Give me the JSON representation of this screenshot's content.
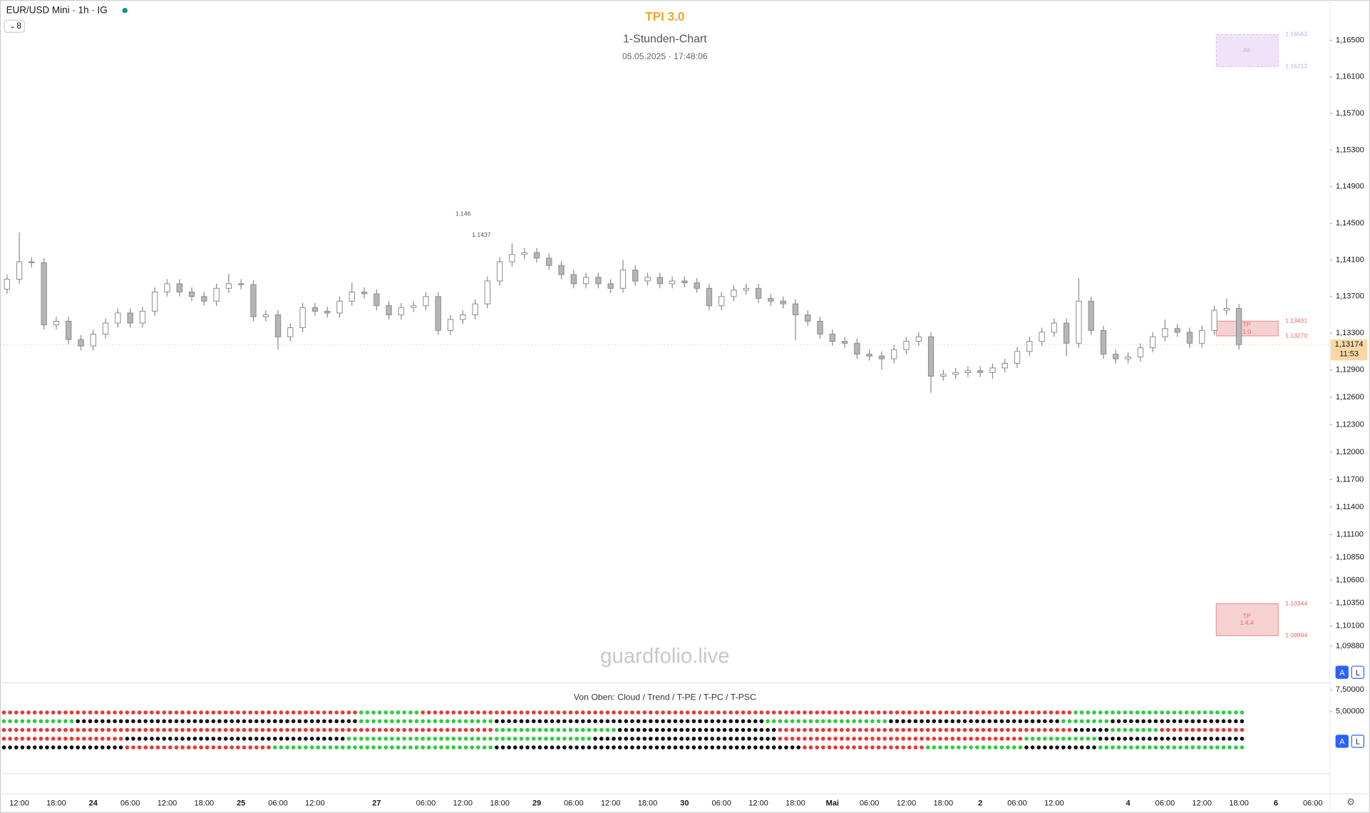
{
  "header": {
    "symbol": "EUR/USD Mini · 1h · IG",
    "indicator_count": 8
  },
  "chart_data": {
    "type": "candlestick",
    "title": "TPI 3.0",
    "subtitle": "1-Stunden-Chart",
    "timestamp": "05.05.2025 · 17:48:06",
    "watermark": "guardfolio.live",
    "categories": [
      null,
      "12:00",
      null,
      null,
      "18:00",
      null,
      null,
      "24",
      null,
      null,
      "06:00",
      null,
      null,
      "12:00",
      null,
      null,
      "18:00",
      null,
      null,
      "25",
      null,
      null,
      "06:00",
      null,
      null,
      "12:00",
      null,
      null,
      null,
      null,
      "27",
      null,
      null,
      null,
      "06:00",
      null,
      null,
      "12:00",
      null,
      null,
      "18:00",
      null,
      null,
      "29",
      null,
      null,
      "06:00",
      null,
      null,
      "12:00",
      null,
      null,
      "18:00",
      null,
      null,
      "30",
      null,
      null,
      "06:00",
      null,
      null,
      "12:00",
      null,
      null,
      "18:00",
      null,
      null,
      "Mai",
      null,
      null,
      "06:00",
      null,
      null,
      "12:00",
      null,
      null,
      "18:00",
      null,
      null,
      "2",
      null,
      null,
      "06:00",
      null,
      null,
      "12:00",
      null,
      null,
      null,
      null,
      null,
      "4",
      null,
      null,
      "06:00",
      null,
      null,
      "12:00",
      null,
      null,
      "18:00",
      null,
      null,
      "6",
      null,
      null,
      "06:00",
      null
    ],
    "open": [
      1.1378,
      1.1389,
      1.1408,
      1.1407,
      1.1339,
      1.1343,
      1.1323,
      1.1316,
      1.1329,
      1.1341,
      1.1352,
      1.1341,
      1.1354,
      1.1375,
      1.1384,
      1.1375,
      1.137,
      1.1365,
      1.1379,
      1.1384,
      1.1383,
      1.1348,
      1.135,
      1.1326,
      1.1336,
      1.1358,
      1.1354,
      1.1352,
      1.1365,
      1.1375,
      1.1373,
      1.136,
      1.135,
      1.1358,
      1.136,
      1.137,
      1.1333,
      1.1345,
      1.135,
      1.1362,
      1.1387,
      1.1408,
      1.1416,
      1.1418,
      1.1412,
      1.1404,
      1.1394,
      1.1384,
      1.1391,
      1.1384,
      1.1379,
      1.1399,
      1.1387,
      1.1391,
      1.1384,
      1.1387,
      1.1385,
      1.1379,
      1.136,
      1.137,
      1.1377,
      1.1379,
      1.1368,
      1.1365,
      1.1362,
      1.135,
      1.1343,
      1.1329,
      1.1321,
      1.1319,
      1.1307,
      1.1305,
      1.1302,
      1.1312,
      1.1321,
      1.1326,
      1.1283,
      1.1285,
      1.1287,
      1.1289,
      1.1287,
      1.1292,
      1.1297,
      1.131,
      1.1321,
      1.1331,
      1.1341,
      1.1319,
      1.1365,
      1.1333,
      1.1307,
      1.1302,
      1.1304,
      1.1314,
      1.1326,
      1.1335,
      1.1331,
      1.1319,
      1.1333,
      1.1355,
      1.1357,
      null,
      null,
      null,
      null,
      null,
      null,
      null
    ],
    "high": [
      1.1394,
      1.144,
      1.1413,
      1.1412,
      1.1348,
      1.1348,
      1.1328,
      1.1334,
      1.1346,
      1.1357,
      1.1357,
      1.1359,
      1.138,
      1.1389,
      1.1389,
      1.138,
      1.1375,
      1.1384,
      1.1395,
      1.1389,
      1.1388,
      1.1355,
      1.1355,
      1.1341,
      1.1363,
      1.1363,
      1.1359,
      1.137,
      1.1385,
      1.138,
      1.1378,
      1.1365,
      1.1363,
      1.1365,
      1.1375,
      1.1375,
      1.135,
      1.1355,
      1.1367,
      1.1392,
      1.1413,
      1.1428,
      1.1423,
      1.1423,
      1.1417,
      1.1409,
      1.1399,
      1.1396,
      1.1396,
      1.1389,
      1.141,
      1.1404,
      1.1396,
      1.1396,
      1.1392,
      1.1392,
      1.139,
      1.1384,
      1.1375,
      1.1382,
      1.1384,
      1.1384,
      1.1373,
      1.137,
      1.1367,
      1.1355,
      1.1348,
      1.1334,
      1.1326,
      1.1324,
      1.1312,
      1.131,
      1.1317,
      1.1326,
      1.1331,
      1.1331,
      1.129,
      1.1292,
      1.1294,
      1.1294,
      1.1297,
      1.1302,
      1.1315,
      1.1326,
      1.1336,
      1.1346,
      1.1346,
      1.139,
      1.137,
      1.1338,
      1.1312,
      1.1309,
      1.1319,
      1.1331,
      1.1345,
      1.134,
      1.1336,
      1.1338,
      1.136,
      1.1368,
      1.1362,
      null,
      null,
      null,
      null,
      null,
      null,
      null
    ],
    "low": [
      1.1373,
      1.1384,
      1.1402,
      1.1334,
      1.1334,
      1.1318,
      1.1311,
      1.1311,
      1.1324,
      1.1336,
      1.1336,
      1.1336,
      1.1349,
      1.137,
      1.137,
      1.1365,
      1.136,
      1.136,
      1.1374,
      1.1378,
      1.1343,
      1.1343,
      1.1312,
      1.1321,
      1.1331,
      1.1349,
      1.1347,
      1.1347,
      1.136,
      1.1368,
      1.1355,
      1.1345,
      1.1345,
      1.1353,
      1.1355,
      1.1328,
      1.1328,
      1.134,
      1.1345,
      1.1357,
      1.1382,
      1.1403,
      1.1411,
      1.1407,
      1.1399,
      1.1389,
      1.1379,
      1.1379,
      1.1379,
      1.1374,
      1.1374,
      1.1382,
      1.1382,
      1.1379,
      1.1379,
      1.138,
      1.1374,
      1.1355,
      1.1355,
      1.1365,
      1.1372,
      1.1363,
      1.136,
      1.1357,
      1.1322,
      1.1338,
      1.1324,
      1.1316,
      1.1314,
      1.1302,
      1.13,
      1.129,
      1.1297,
      1.1307,
      1.1316,
      1.1265,
      1.1278,
      1.128,
      1.1282,
      1.1282,
      1.128,
      1.1287,
      1.1292,
      1.1305,
      1.1316,
      1.1326,
      1.1305,
      1.1314,
      1.1328,
      1.1302,
      1.1297,
      1.1297,
      1.1299,
      1.1309,
      1.1321,
      1.1326,
      1.1314,
      1.1314,
      1.1328,
      1.135,
      1.1312,
      null,
      null,
      null,
      null,
      null,
      null,
      null
    ],
    "close": [
      1.1389,
      1.1408,
      1.1407,
      1.1339,
      1.1343,
      1.1323,
      1.1316,
      1.1329,
      1.1341,
      1.1352,
      1.1341,
      1.1354,
      1.1375,
      1.1384,
      1.1375,
      1.137,
      1.1365,
      1.1379,
      1.1384,
      1.1383,
      1.1348,
      1.135,
      1.1326,
      1.1336,
      1.1358,
      1.1354,
      1.1352,
      1.1365,
      1.1375,
      1.1373,
      1.136,
      1.135,
      1.1358,
      1.136,
      1.137,
      1.1333,
      1.1345,
      1.135,
      1.1362,
      1.1387,
      1.1408,
      1.1416,
      1.1418,
      1.1412,
      1.1404,
      1.1394,
      1.1384,
      1.1391,
      1.1384,
      1.1379,
      1.1399,
      1.1387,
      1.1391,
      1.1384,
      1.1387,
      1.1385,
      1.1379,
      1.136,
      1.137,
      1.1377,
      1.1379,
      1.1368,
      1.1365,
      1.1362,
      1.135,
      1.1343,
      1.1329,
      1.1321,
      1.1319,
      1.1307,
      1.1305,
      1.1302,
      1.1312,
      1.1321,
      1.1326,
      1.1283,
      1.1285,
      1.1287,
      1.1289,
      1.1287,
      1.1292,
      1.1297,
      1.131,
      1.1321,
      1.1331,
      1.1341,
      1.1319,
      1.1365,
      1.1333,
      1.1307,
      1.1302,
      1.1304,
      1.1314,
      1.1326,
      1.1335,
      1.1331,
      1.1319,
      1.1333,
      1.1355,
      1.1357,
      1.13174,
      null,
      null,
      null,
      null,
      null,
      null,
      null
    ],
    "up_color": "#ffffff",
    "down_color": "#b5b5b5",
    "wick_color": "#8a8a8a",
    "ylim": [
      1.0949,
      1.1694
    ],
    "yticks": [
      {
        "value": 1.165,
        "label": "1,16500"
      },
      {
        "value": 1.161,
        "label": "1,16100"
      },
      {
        "value": 1.157,
        "label": "1,15700"
      },
      {
        "value": 1.153,
        "label": "1,15300"
      },
      {
        "value": 1.149,
        "label": "1,14900"
      },
      {
        "value": 1.145,
        "label": "1,14500"
      },
      {
        "value": 1.141,
        "label": "1,14100"
      },
      {
        "value": 1.137,
        "label": "1,13700"
      },
      {
        "value": 1.133,
        "label": "1,13300"
      },
      {
        "value": 1.129,
        "label": "1,12900"
      },
      {
        "value": 1.126,
        "label": "1,12600"
      },
      {
        "value": 1.123,
        "label": "1,12300"
      },
      {
        "value": 1.12,
        "label": "1,12000"
      },
      {
        "value": 1.117,
        "label": "1,11700"
      },
      {
        "value": 1.114,
        "label": "1,11400"
      },
      {
        "value": 1.111,
        "label": "1,11100"
      },
      {
        "value": 1.1085,
        "label": "1,10850"
      },
      {
        "value": 1.106,
        "label": "1,10600"
      },
      {
        "value": 1.1035,
        "label": "1,10350"
      },
      {
        "value": 1.101,
        "label": "1,10100"
      },
      {
        "value": 1.0988,
        "label": "1,09880"
      }
    ],
    "last_price": {
      "value": 1.13174,
      "label": "1,13174"
    },
    "countdown": "11:53",
    "annotations": [
      1.146,
      1.1437
    ],
    "zones": [
      {
        "label": "Alt",
        "top": 1.16563,
        "bottom": 1.16212,
        "color": "#c9a3ee"
      },
      {
        "label": "TP",
        "ratio": "1:0",
        "top": 1.13431,
        "bottom": {
          "value": 1.1327,
          "label": "1.13270"
        },
        "color": "#e06666"
      },
      {
        "label": "TP",
        "ratio": "1:4.4",
        "top": 1.10344,
        "bottom": 1.09994,
        "color": "#e06666"
      }
    ]
  },
  "indicator": {
    "title": "Von Oben: Cloud / Trend / T-PE / T-PC / T-PSC",
    "yticks": [
      {
        "value": 7.5,
        "label": "7,50000"
      },
      {
        "value": 5,
        "label": "5,00000"
      }
    ],
    "rows": [
      "rrrrrrrrrrrrrrrrrrrrrrrrrrrrrgggggrrrrrrrrrrrrrrrrrrrrrrrrrrrrrrrrrrrrrrrrrrrrrrrrrrrrrgggggggggggggg",
      "ggggggkkkkkkkkkkkkkkkkkkkkkkkgggggggggggkkkkkkkkkkkkkkkkkkkkkkggggggggggkkkkkkkkkkkkkkggggkkkkkkkkkkk",
      "rrrrrrrrrrrrrrrrrrrrrrrrrrrrrrrrrrrrrrrrggggggggggkkkkkkkkkkkkkrrrrrrrrrrrrrrrrrrrrrrrrkkkggggrrrrrrr",
      "rrrrrrrrrrkkkkkkkkkkkkkkkkkkggggggggggggggggggggkkkkkkkkkkkkkkkrrrrrrrrrrrrrrrrrrrrggggggkkkkkkkkkkkk",
      "kkkkkkkkkkrrrrrrrrrrrrggggggggggggggggggkkkkkkkkkkkkkkkkkkkkkkkkkrrrrrrrrrrggggggggkkkkkkgggggggggggg"
    ],
    "colors": {
      "r": "#e53935",
      "g": "#2ecc40",
      "k": "#111111"
    }
  },
  "buttons": [
    "A",
    "L"
  ]
}
